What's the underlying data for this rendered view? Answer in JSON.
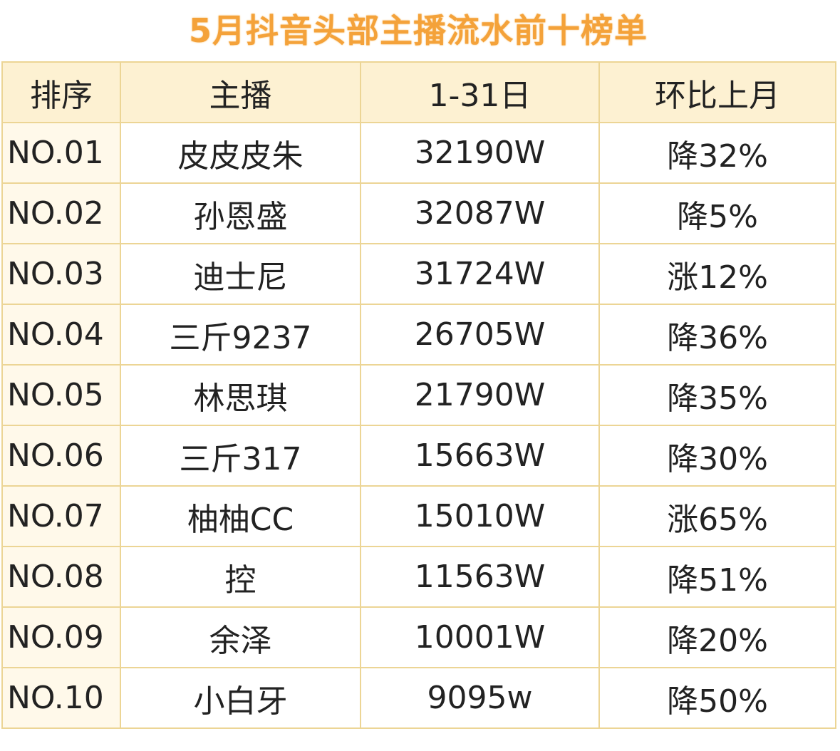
{
  "title": "5月抖音头部主播流水前十榜单",
  "headers": [
    "排序",
    "主播",
    "1-31日",
    "环比上月"
  ],
  "rows": [
    [
      "NO.01",
      "皮皮皮朱",
      "32190W",
      "降32%"
    ],
    [
      "NO.02",
      "孙恩盛",
      "32087W",
      "降5%"
    ],
    [
      "NO.03",
      "迪士尼",
      "31724W",
      "涨12%"
    ],
    [
      "NO.04",
      "三斤9237",
      "26705W",
      "降36%"
    ],
    [
      "NO.05",
      "林思琪",
      "21790W",
      "降35%"
    ],
    [
      "NO.06",
      "三斤317",
      "15663W",
      "降30%"
    ],
    [
      "NO.07",
      "柚柚CC",
      "15010W",
      "涨65%"
    ],
    [
      "NO.08",
      "控",
      "11563W",
      "降51%"
    ],
    [
      "NO.09",
      "余泽",
      "10001W",
      "降20%"
    ],
    [
      "NO.10",
      "小白牙",
      "9095w",
      "降50%"
    ]
  ]
}
